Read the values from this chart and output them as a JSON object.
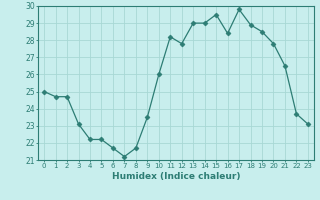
{
  "x": [
    0,
    1,
    2,
    3,
    4,
    5,
    6,
    7,
    8,
    9,
    10,
    11,
    12,
    13,
    14,
    15,
    16,
    17,
    18,
    19,
    20,
    21,
    22,
    23
  ],
  "y": [
    25.0,
    24.7,
    24.7,
    23.1,
    22.2,
    22.2,
    21.7,
    21.2,
    21.7,
    23.5,
    26.0,
    28.2,
    27.8,
    29.0,
    29.0,
    29.5,
    28.4,
    29.8,
    28.9,
    28.5,
    27.8,
    26.5,
    23.7,
    23.1
  ],
  "line_color": "#2d7d74",
  "marker": "D",
  "marker_size": 2.5,
  "bg_color": "#c8eeed",
  "grid_color": "#a8d8d5",
  "axis_color": "#2d7d74",
  "xlabel": "Humidex (Indice chaleur)",
  "ylim": [
    21,
    30
  ],
  "xlim": [
    -0.5,
    23.5
  ],
  "yticks": [
    21,
    22,
    23,
    24,
    25,
    26,
    27,
    28,
    29,
    30
  ],
  "xticks": [
    0,
    1,
    2,
    3,
    4,
    5,
    6,
    7,
    8,
    9,
    10,
    11,
    12,
    13,
    14,
    15,
    16,
    17,
    18,
    19,
    20,
    21,
    22,
    23
  ]
}
